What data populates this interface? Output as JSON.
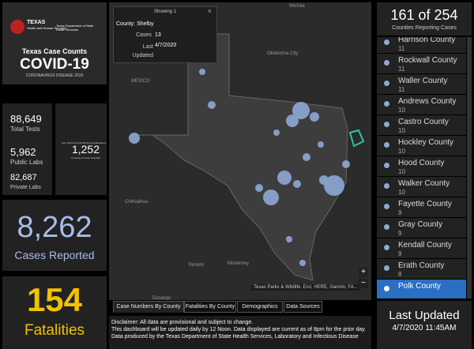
{
  "header": {
    "agency": "TEXAS",
    "agency_sub": "Health and Human Services",
    "department": "Texas Department of State Health Services",
    "title": "Texas Case Counts",
    "covid": "COVID-19",
    "subtitle": "CORONAVIRUS DISEASE 2019"
  },
  "tests": {
    "total": "88,649",
    "total_label": "Total Tests",
    "public": "5,962",
    "public_label": "Public Labs",
    "private": "82,687",
    "private_label": "Private Labs"
  },
  "hospital": {
    "title": "Lab Confirmed COVID-19 Hospitalizations",
    "value": "1,252",
    "label": "Currently in Texas Hospitals"
  },
  "cases": {
    "value": "8,262",
    "label": "Cases Reported"
  },
  "fatalities": {
    "value": "154",
    "label": "Fatalities"
  },
  "map": {
    "popup": {
      "showing": "Showing 1",
      "county": "County: Shelby",
      "cases_label": "Cases",
      "cases": "13",
      "updated_label": "Last Updated",
      "updated": "4/7/2020"
    },
    "places": [
      "Wichita",
      "Oklahoma City",
      "MEXICO",
      "Chihuahua",
      "Torreón",
      "Monterrey",
      "Durango"
    ],
    "attribution": "Texas Parks & Wildlife, Esri, HERE, Garmin, FA..."
  },
  "tabs": [
    "Case Numbers By County",
    "Fatalities By County",
    "Demographics",
    "Data Sources"
  ],
  "disclaimer": [
    "Disclaimer: All data are provisional and subject to change.",
    "This dashboard will be updated daily by 12 Noon. Data displayed are current as of 8pm for the prior day.",
    "Data produced by the Texas Department of State Health Services, Laboratory and Infectious Disease"
  ],
  "counties": {
    "count": "161 of 254",
    "label": "Counties Reporting Cases",
    "list": [
      {
        "name": "Harrison County",
        "value": "11"
      },
      {
        "name": "Rockwall County",
        "value": "11"
      },
      {
        "name": "Waller County",
        "value": "11"
      },
      {
        "name": "Andrews County",
        "value": "10"
      },
      {
        "name": "Castro County",
        "value": "10"
      },
      {
        "name": "Hockley County",
        "value": "10"
      },
      {
        "name": "Hood County",
        "value": "10"
      },
      {
        "name": "Walker County",
        "value": "10"
      },
      {
        "name": "Fayette County",
        "value": "9"
      },
      {
        "name": "Gray County",
        "value": "9"
      },
      {
        "name": "Kendall County",
        "value": "9"
      },
      {
        "name": "Erath County",
        "value": "8"
      },
      {
        "name": "Polk County",
        "value": ""
      }
    ]
  },
  "updated": {
    "label": "Last Updated",
    "value": "4/7/2020 11:45AM"
  }
}
